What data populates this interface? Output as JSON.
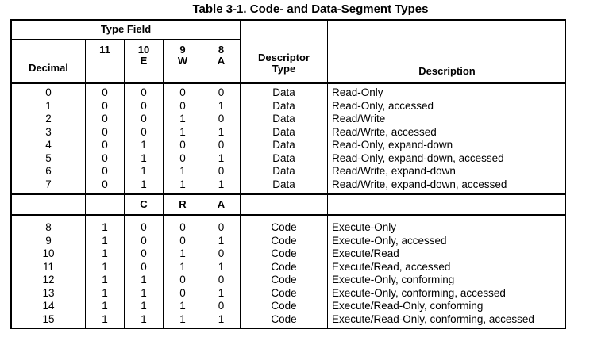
{
  "title": "Table 3-1.  Code- and Data-Segment Types",
  "header": {
    "type_field": "Type Field",
    "decimal": "Decimal",
    "bit11": "11",
    "bit10": "10\nE",
    "bit9": "9\nW",
    "bit8": "8\nA",
    "descriptor_type": "Descriptor\nType",
    "description": "Description"
  },
  "subheader": {
    "c": "C",
    "r": "R",
    "a": "A"
  },
  "data_rows": [
    {
      "decimal": "0",
      "b11": "0",
      "b10": "0",
      "b9": "0",
      "b8": "0",
      "type": "Data",
      "desc": "Read-Only"
    },
    {
      "decimal": "1",
      "b11": "0",
      "b10": "0",
      "b9": "0",
      "b8": "1",
      "type": "Data",
      "desc": "Read-Only, accessed"
    },
    {
      "decimal": "2",
      "b11": "0",
      "b10": "0",
      "b9": "1",
      "b8": "0",
      "type": "Data",
      "desc": "Read/Write"
    },
    {
      "decimal": "3",
      "b11": "0",
      "b10": "0",
      "b9": "1",
      "b8": "1",
      "type": "Data",
      "desc": "Read/Write, accessed"
    },
    {
      "decimal": "4",
      "b11": "0",
      "b10": "1",
      "b9": "0",
      "b8": "0",
      "type": "Data",
      "desc": "Read-Only, expand-down"
    },
    {
      "decimal": "5",
      "b11": "0",
      "b10": "1",
      "b9": "0",
      "b8": "1",
      "type": "Data",
      "desc": "Read-Only, expand-down, accessed"
    },
    {
      "decimal": "6",
      "b11": "0",
      "b10": "1",
      "b9": "1",
      "b8": "0",
      "type": "Data",
      "desc": "Read/Write, expand-down"
    },
    {
      "decimal": "7",
      "b11": "0",
      "b10": "1",
      "b9": "1",
      "b8": "1",
      "type": "Data",
      "desc": "Read/Write, expand-down, accessed"
    }
  ],
  "code_rows": [
    {
      "decimal": "8",
      "b11": "1",
      "b10": "0",
      "b9": "0",
      "b8": "0",
      "type": "Code",
      "desc": "Execute-Only"
    },
    {
      "decimal": "9",
      "b11": "1",
      "b10": "0",
      "b9": "0",
      "b8": "1",
      "type": "Code",
      "desc": "Execute-Only, accessed"
    },
    {
      "decimal": "10",
      "b11": "1",
      "b10": "0",
      "b9": "1",
      "b8": "0",
      "type": "Code",
      "desc": "Execute/Read"
    },
    {
      "decimal": "11",
      "b11": "1",
      "b10": "0",
      "b9": "1",
      "b8": "1",
      "type": "Code",
      "desc": "Execute/Read, accessed"
    },
    {
      "decimal": "12",
      "b11": "1",
      "b10": "1",
      "b9": "0",
      "b8": "0",
      "type": "Code",
      "desc": "Execute-Only, conforming"
    },
    {
      "decimal": "13",
      "b11": "1",
      "b10": "1",
      "b9": "0",
      "b8": "1",
      "type": "Code",
      "desc": "Execute-Only, conforming, accessed"
    },
    {
      "decimal": "14",
      "b11": "1",
      "b10": "1",
      "b9": "1",
      "b8": "0",
      "type": "Code",
      "desc": "Execute/Read-Only, conforming"
    },
    {
      "decimal": "15",
      "b11": "1",
      "b10": "1",
      "b9": "1",
      "b8": "1",
      "type": "Code",
      "desc": "Execute/Read-Only, conforming, accessed"
    }
  ]
}
